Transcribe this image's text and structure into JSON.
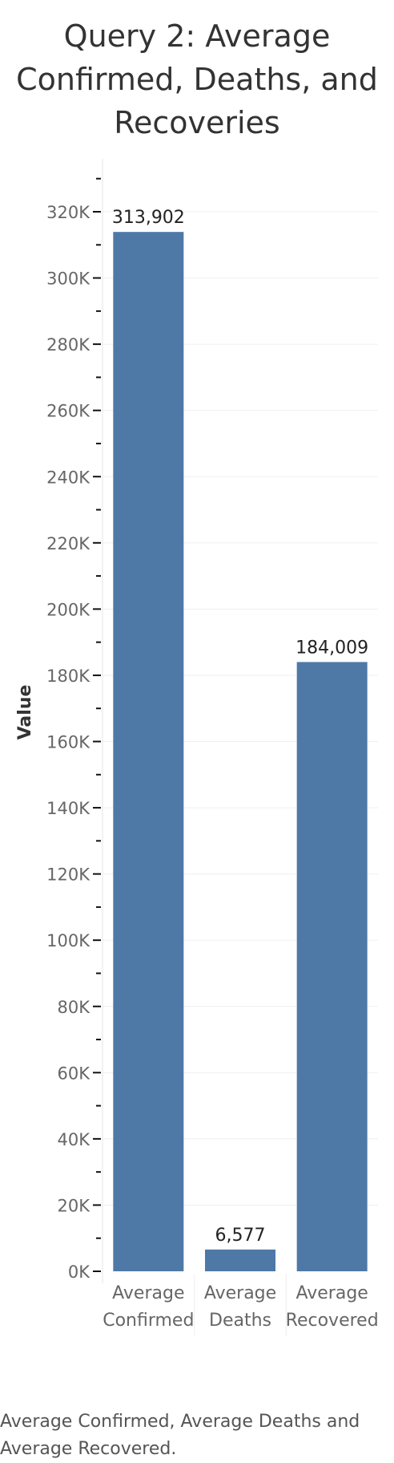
{
  "chart_data": {
    "type": "bar",
    "title_lines": [
      "Query 2: Average",
      "Confirmed, Deaths, and",
      "Recoveries"
    ],
    "ylabel": "Value",
    "xlabel": "",
    "categories": [
      [
        "Average",
        "Confirmed"
      ],
      [
        "Average",
        "Deaths"
      ],
      [
        "Average",
        "Recovered"
      ]
    ],
    "values": [
      313902,
      6577,
      184009
    ],
    "data_labels": [
      "313,902",
      "6,577",
      "184,009"
    ],
    "ylim": [
      0,
      336000
    ],
    "y_ticks": [
      0,
      20000,
      40000,
      60000,
      80000,
      100000,
      120000,
      140000,
      160000,
      180000,
      200000,
      220000,
      240000,
      260000,
      280000,
      300000,
      320000
    ],
    "y_tick_labels": [
      "0K",
      "20K",
      "40K",
      "60K",
      "80K",
      "100K",
      "120K",
      "140K",
      "160K",
      "180K",
      "200K",
      "220K",
      "240K",
      "260K",
      "280K",
      "300K",
      "320K"
    ],
    "minor_tick_step": 10000,
    "grid": true,
    "bar_color": "#4e79a7",
    "caption": "Average Confirmed, Average Deaths and Average Recovered."
  }
}
